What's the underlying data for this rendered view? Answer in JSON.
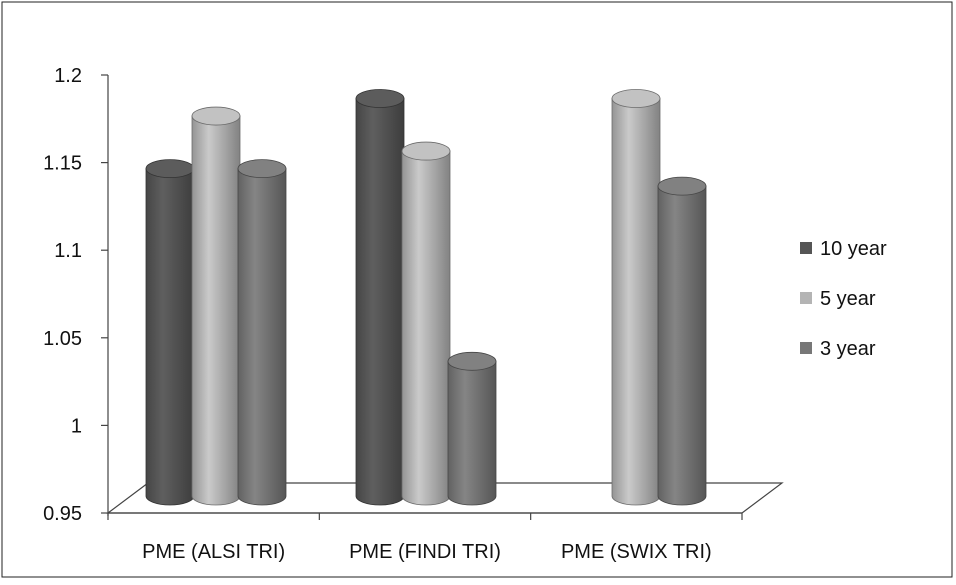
{
  "chart_data": {
    "type": "bar",
    "style": "3d-cylinder",
    "categories": [
      "PME (ALSI TRI)",
      "PME (FINDI TRI)",
      "PME (SWIX TRI)"
    ],
    "series": [
      {
        "name": "10 year",
        "values": [
          1.15,
          1.19,
          null
        ],
        "color": "#555555"
      },
      {
        "name": "5 year",
        "values": [
          1.18,
          1.16,
          1.19
        ],
        "color": "#b4b4b4"
      },
      {
        "name": "3 year",
        "values": [
          1.15,
          1.04,
          1.14
        ],
        "color": "#777777"
      }
    ],
    "ylim": [
      0.95,
      1.2
    ],
    "yticks": [
      "0.95",
      "1",
      "1.05",
      "1.1",
      "1.15",
      "1.2"
    ],
    "xlabel": "",
    "ylabel": "",
    "title": "",
    "legend_position": "right",
    "grid": false
  }
}
